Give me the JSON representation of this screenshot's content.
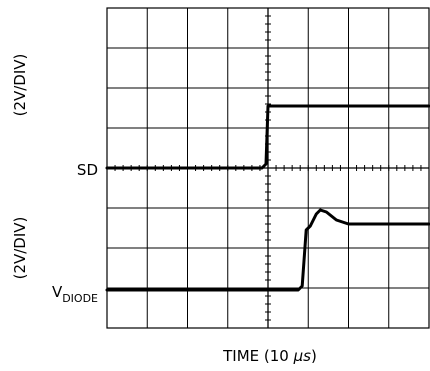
{
  "chart_data": {
    "type": "line",
    "subtype": "oscilloscope-trace",
    "xlabel_prefix": "TIME (10 ",
    "xlabel_unit": "μs",
    "xlabel_suffix": ")",
    "grid": true,
    "divisions": {
      "x": 8,
      "y": 8
    },
    "xlim": [
      0,
      8
    ],
    "ylim": [
      0,
      8
    ],
    "channel_labels": {
      "top": "(2V/DIV)",
      "bottom": "(2V/DIV)",
      "ch1": "SD",
      "ch2_main": "V",
      "ch2_sub": "DIODE"
    },
    "series": [
      {
        "name": "SD",
        "x": [
          0,
          3.85,
          3.95,
          4.0,
          8
        ],
        "y": [
          4.0,
          4.0,
          4.1,
          5.55,
          5.55
        ]
      },
      {
        "name": "V_DIODE",
        "x": [
          0,
          4.75,
          4.85,
          4.95,
          5.05,
          5.2,
          5.3,
          5.45,
          5.7,
          6.0,
          8
        ],
        "y": [
          0.95,
          0.95,
          1.05,
          2.45,
          2.55,
          2.85,
          2.95,
          2.9,
          2.7,
          2.6,
          2.6
        ]
      }
    ]
  }
}
